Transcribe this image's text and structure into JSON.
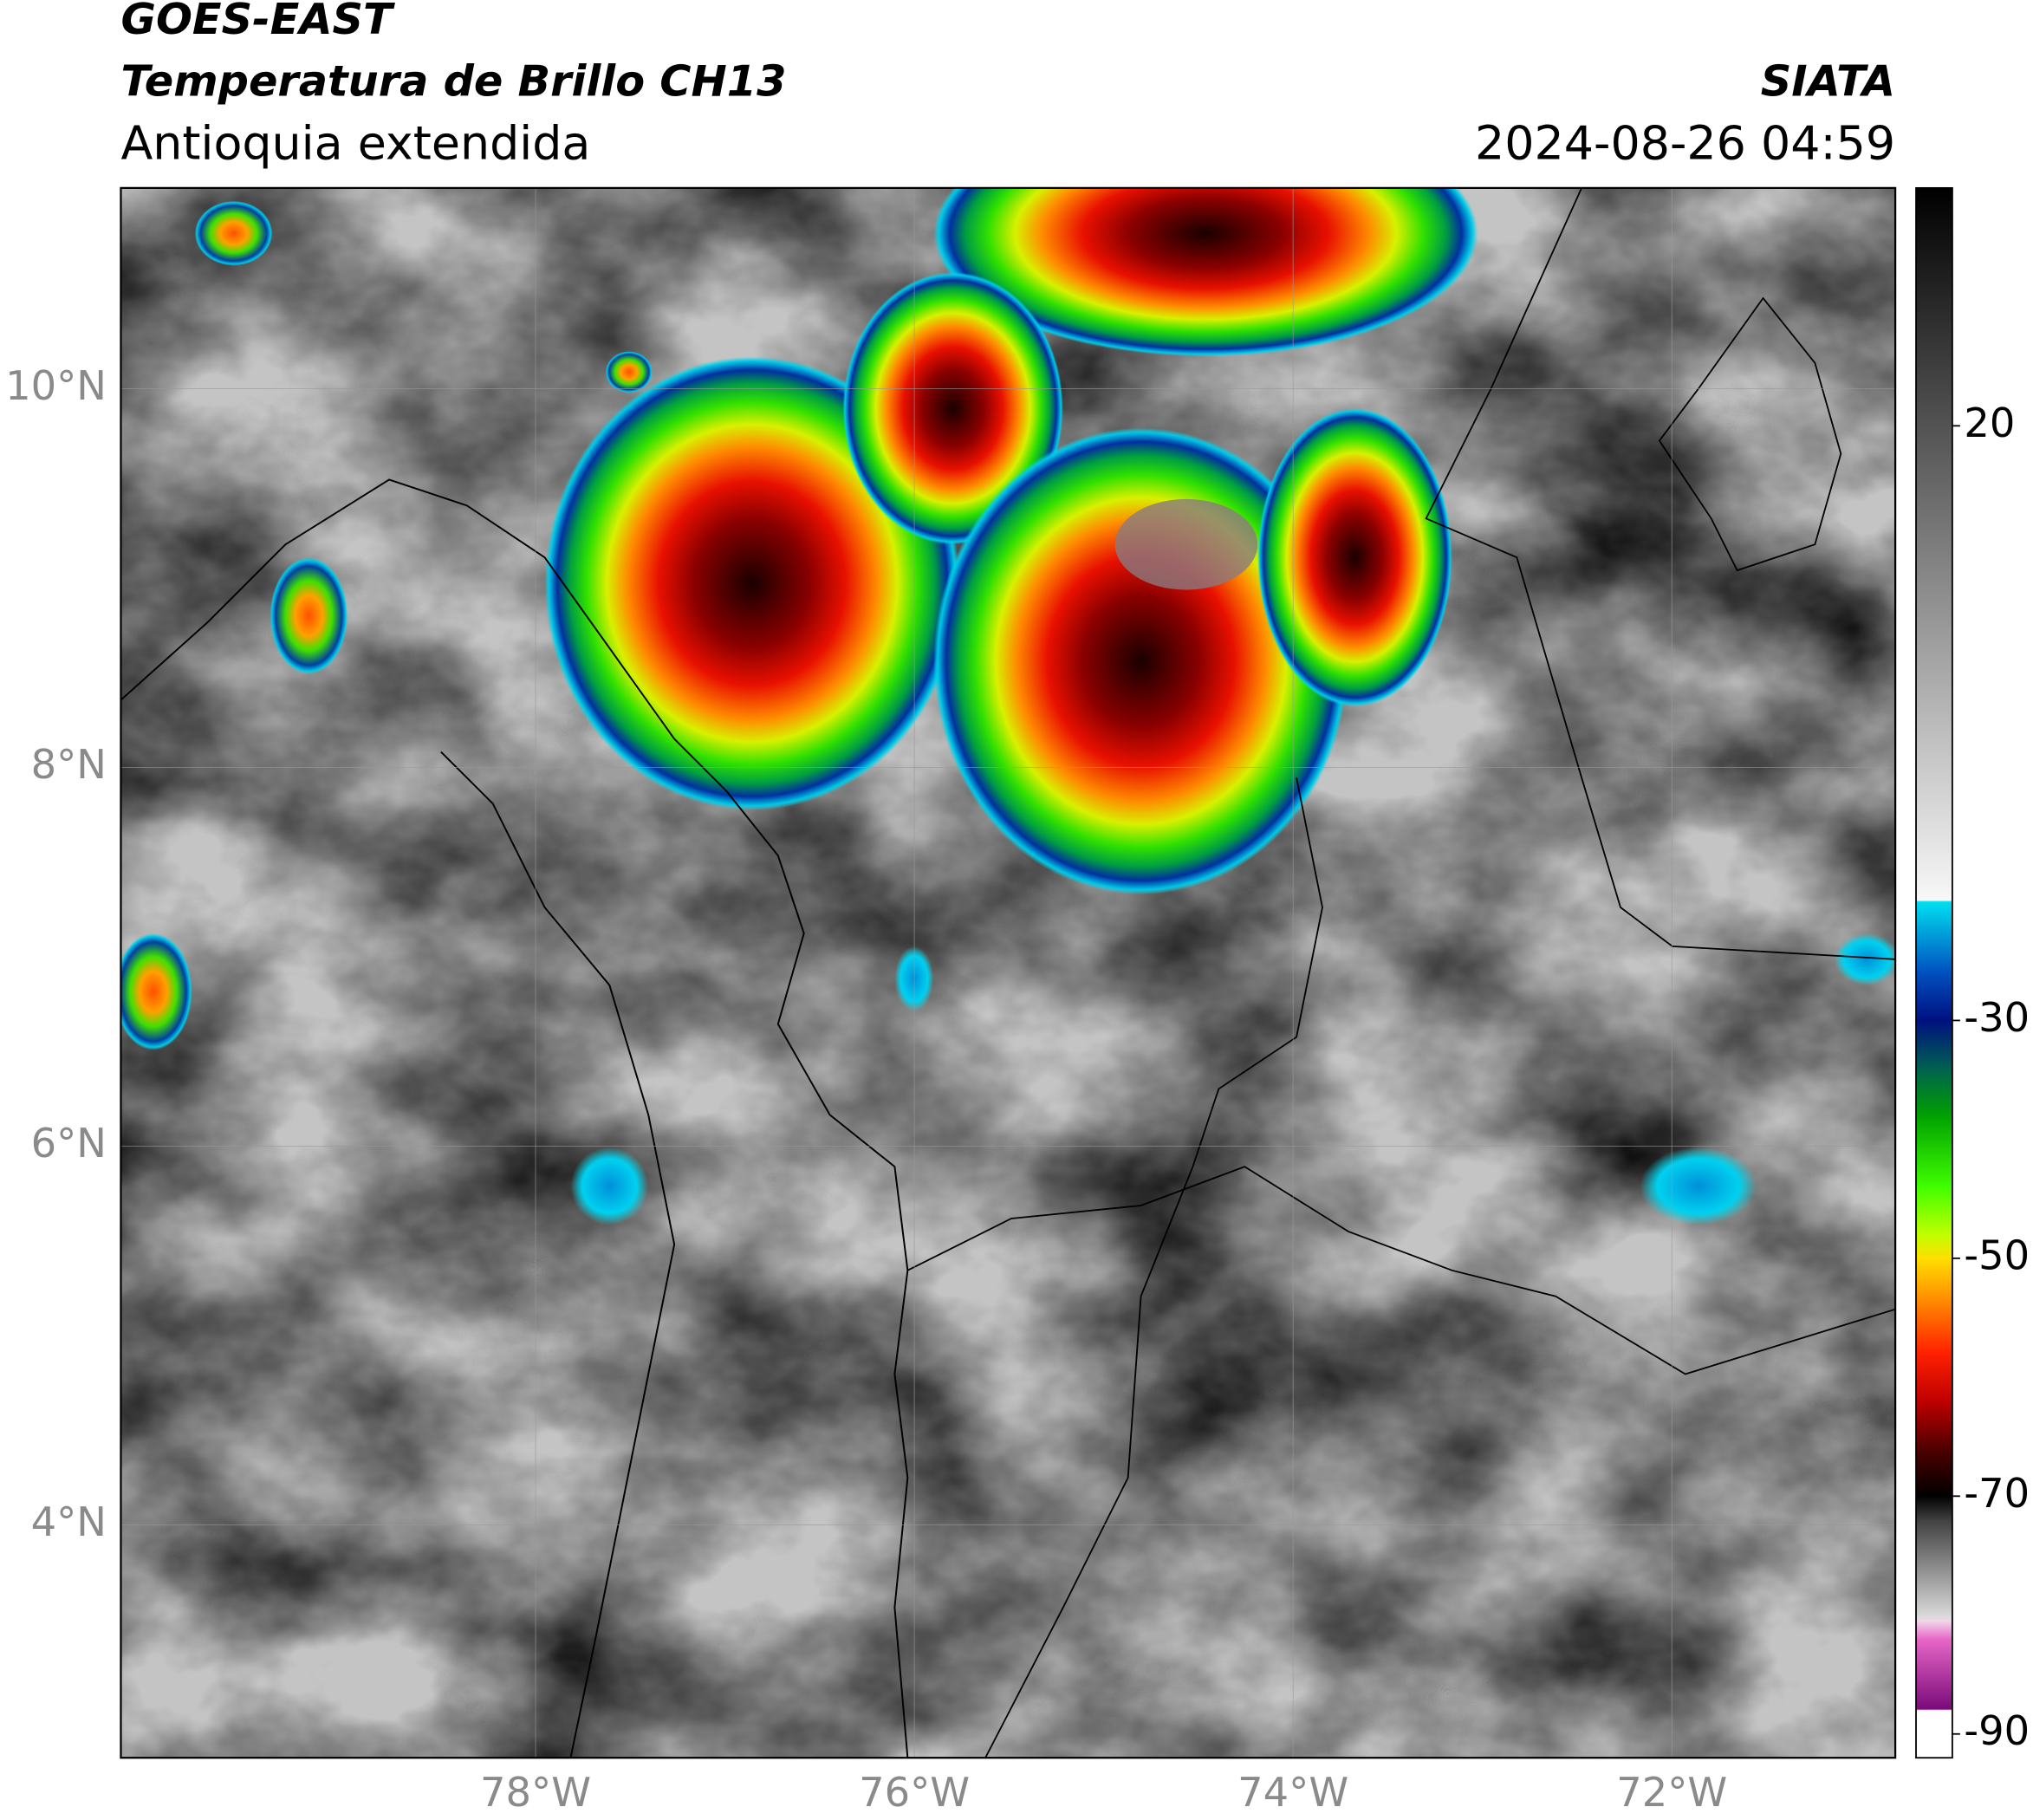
{
  "header": {
    "title": "GOES-EAST",
    "subtitle": "Temperatura de Brillo CH13",
    "region": "Antioquia extendida",
    "source": "SIATA",
    "datetime": "2024-08-26 04:59"
  },
  "map": {
    "xlim": [
      -80.19,
      -70.82
    ],
    "ylim": [
      2.77,
      11.06
    ],
    "xticks": [
      {
        "value": -78,
        "label": "78°W"
      },
      {
        "value": -76,
        "label": "76°W"
      },
      {
        "value": -74,
        "label": "74°W"
      },
      {
        "value": -72,
        "label": "72°W"
      }
    ],
    "yticks": [
      {
        "value": 4,
        "label": "4°N"
      },
      {
        "value": 6,
        "label": "6°N"
      },
      {
        "value": 8,
        "label": "8°N"
      },
      {
        "value": 10,
        "label": "10°N"
      }
    ],
    "grid": true
  },
  "colorbar": {
    "lim": [
      -92,
      40
    ],
    "ticks": [
      -90,
      -70,
      -50,
      -30,
      20
    ],
    "stops": [
      {
        "value": -92,
        "color": "#ffffff"
      },
      {
        "value": -88,
        "color": "#ffffff"
      },
      {
        "value": -87.9,
        "color": "#7a0a7a"
      },
      {
        "value": -82,
        "color": "#e868c8"
      },
      {
        "value": -80.5,
        "color": "#f0d8ea"
      },
      {
        "value": -80,
        "color": "#d8d8d8"
      },
      {
        "value": -72,
        "color": "#404040"
      },
      {
        "value": -70,
        "color": "#000000"
      },
      {
        "value": -66,
        "color": "#500000"
      },
      {
        "value": -62,
        "color": "#c00000"
      },
      {
        "value": -58,
        "color": "#ff2000"
      },
      {
        "value": -54,
        "color": "#ff8000"
      },
      {
        "value": -50,
        "color": "#ffe000"
      },
      {
        "value": -48,
        "color": "#c0ff00"
      },
      {
        "value": -44,
        "color": "#40ff00"
      },
      {
        "value": -38,
        "color": "#00a000"
      },
      {
        "value": -34,
        "color": "#006050"
      },
      {
        "value": -30,
        "color": "#001080"
      },
      {
        "value": -26,
        "color": "#0050c0"
      },
      {
        "value": -22,
        "color": "#00b0e0"
      },
      {
        "value": -20,
        "color": "#00e0f0"
      },
      {
        "value": -19.9,
        "color": "#f8f8f8"
      },
      {
        "value": 40,
        "color": "#000000"
      }
    ]
  }
}
